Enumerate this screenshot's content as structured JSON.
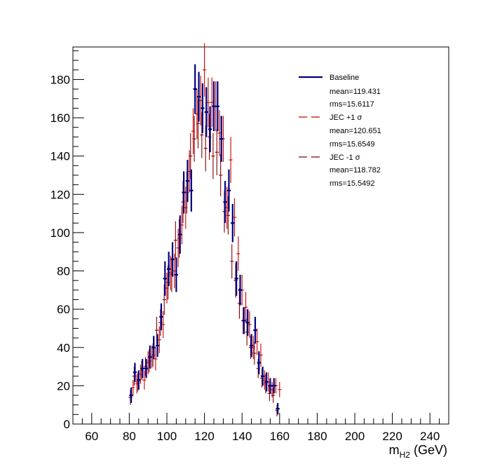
{
  "chart_data": {
    "type": "scatter",
    "xlabel_main": "m",
    "xlabel_sub": "H2",
    "xlabel_unit": " (GeV)",
    "xlim": [
      50,
      250
    ],
    "ylim": [
      0,
      197
    ],
    "xticks": [
      60,
      80,
      100,
      120,
      140,
      160,
      180,
      200,
      220,
      240
    ],
    "yticks": [
      0,
      20,
      40,
      60,
      80,
      100,
      120,
      140,
      160,
      180
    ],
    "bin_width": 2,
    "legend": [
      {
        "label": "Baseline",
        "mean": "mean=119.431",
        "rms": "rms=15.6117"
      },
      {
        "label": "JEC +1",
        "mean": "mean=120.651",
        "rms": "rms=15.6549"
      },
      {
        "label": "JEC -1",
        "mean": "mean=118.782",
        "rms": "rms=15.5492"
      }
    ],
    "series": [
      {
        "name": "Baseline",
        "color": "#00007f",
        "x": [
          81,
          83,
          85,
          87,
          89,
          91,
          93,
          95,
          97,
          99,
          101,
          103,
          105,
          107,
          109,
          111,
          113,
          115,
          117,
          119,
          121,
          123,
          125,
          127,
          129,
          131,
          133,
          135,
          137,
          139,
          141,
          143,
          145,
          147,
          149,
          151,
          153,
          155,
          157,
          159
        ],
        "y": [
          15,
          27,
          23,
          29,
          29,
          35,
          40,
          41,
          56,
          76,
          81,
          86,
          78,
          99,
          121,
          127,
          122,
          175,
          171,
          165,
          163,
          154,
          166,
          166,
          149,
          116,
          122,
          105,
          76,
          70,
          54,
          53,
          41,
          49,
          32,
          25,
          22,
          20,
          20,
          8
        ],
        "yerr": [
          4,
          5,
          5,
          5,
          5,
          6,
          6,
          6,
          7,
          9,
          9,
          9,
          9,
          10,
          11,
          11,
          11,
          13,
          13,
          13,
          13,
          12,
          13,
          13,
          12,
          11,
          11,
          10,
          9,
          8,
          7,
          7,
          6,
          7,
          6,
          5,
          5,
          4,
          4,
          3
        ]
      },
      {
        "name": "JEC +1",
        "color": "#cc0000",
        "x": [
          82,
          84,
          86,
          88,
          90,
          92,
          94,
          96,
          98,
          100,
          102,
          104,
          106,
          108,
          110,
          112,
          114,
          116,
          118,
          120,
          122,
          124,
          126,
          128,
          130,
          132,
          134,
          136,
          138,
          140,
          142,
          144,
          146,
          148,
          150,
          152,
          154,
          156,
          158,
          160
        ],
        "y": [
          19,
          21,
          26,
          23,
          32,
          35,
          34,
          44,
          52,
          71,
          79,
          80,
          92,
          104,
          113,
          132,
          153,
          162,
          169,
          185,
          168,
          168,
          166,
          152,
          149,
          113,
          138,
          108,
          89,
          70,
          61,
          52,
          40,
          43,
          36,
          23,
          22,
          18,
          20,
          18
        ],
        "yerr": [
          4,
          5,
          5,
          5,
          6,
          6,
          6,
          7,
          7,
          8,
          9,
          9,
          10,
          10,
          11,
          11,
          12,
          13,
          13,
          14,
          13,
          13,
          13,
          12,
          12,
          11,
          12,
          10,
          9,
          8,
          8,
          7,
          6,
          7,
          6,
          5,
          5,
          4,
          4,
          4
        ]
      },
      {
        "name": "JEC -1",
        "color": "#800000",
        "x": [
          80.6,
          82.6,
          84.6,
          86.6,
          88.6,
          90.6,
          92.6,
          94.6,
          96.6,
          98.6,
          100.6,
          102.6,
          104.6,
          106.6,
          108.6,
          110.6,
          112.6,
          114.6,
          116.6,
          118.6,
          120.6,
          122.6,
          124.6,
          126.6,
          128.6,
          130.6,
          132.6,
          134.6,
          136.6,
          138.6,
          140.6,
          142.6,
          144.6,
          146.6,
          148.6,
          150.6,
          152.6,
          154.6,
          156.6,
          158.6
        ],
        "y": [
          14,
          25,
          22,
          28,
          30,
          33,
          36,
          49,
          53,
          65,
          74,
          78,
          96,
          97,
          116,
          121,
          140,
          149,
          157,
          151,
          144,
          150,
          140,
          142,
          130,
          111,
          109,
          85,
          75,
          63,
          54,
          48,
          40,
          37,
          29,
          24,
          21,
          16,
          15,
          7
        ],
        "yerr": [
          4,
          5,
          5,
          5,
          5,
          6,
          6,
          7,
          7,
          8,
          9,
          9,
          10,
          10,
          11,
          11,
          12,
          12,
          13,
          12,
          12,
          12,
          12,
          12,
          11,
          11,
          10,
          9,
          9,
          8,
          7,
          7,
          6,
          6,
          5,
          5,
          5,
          4,
          4,
          3
        ]
      }
    ]
  },
  "legend_sigma": "σ"
}
